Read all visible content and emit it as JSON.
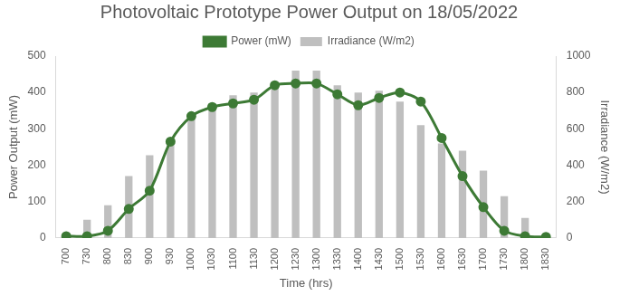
{
  "chart_data": {
    "type": "bar",
    "title": "Photovoltaic Prototype Power Output on 18/05/2022",
    "x_label": "Time (hrs)",
    "y_label": "Power Output (mW)",
    "y2_label": "Irradiance (W/m2)",
    "categories": [
      "700",
      "730",
      "800",
      "830",
      "900",
      "930",
      "1000",
      "1030",
      "1100",
      "1130",
      "1200",
      "1230",
      "1300",
      "1330",
      "1400",
      "1430",
      "1500",
      "1530",
      "1600",
      "1630",
      "1700",
      "1730",
      "1800",
      "1830"
    ],
    "series": [
      {
        "name": "Irradiance (W/m2)",
        "type": "bar",
        "axis": "y2",
        "color": "#bfbfbf",
        "values": [
          0,
          100,
          180,
          340,
          455,
          530,
          660,
          740,
          785,
          800,
          840,
          920,
          920,
          840,
          800,
          810,
          750,
          620,
          520,
          480,
          370,
          230,
          110,
          0
        ]
      },
      {
        "name": "Power (mW)",
        "type": "line",
        "color": "#3d7a35",
        "marker": "circle",
        "line_style": "solid",
        "values": [
          5,
          5,
          20,
          80,
          130,
          265,
          335,
          360,
          370,
          380,
          420,
          425,
          425,
          395,
          365,
          385,
          400,
          375,
          275,
          170,
          85,
          20,
          5,
          3
        ]
      }
    ],
    "ylim": [
      0,
      500
    ],
    "yticks": [
      0,
      100,
      200,
      300,
      400,
      500
    ],
    "y2lim": [
      0,
      1000
    ],
    "y2ticks": [
      0,
      200,
      400,
      600,
      800,
      1000
    ],
    "grid": false,
    "legend": "top"
  }
}
